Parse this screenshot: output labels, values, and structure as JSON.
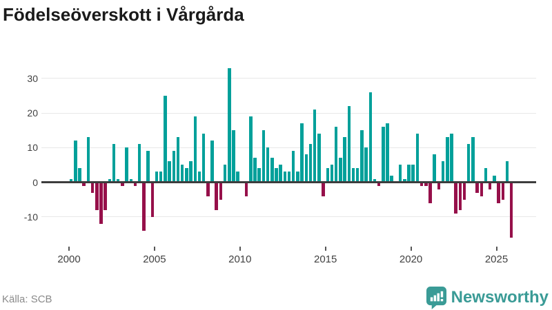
{
  "title": "Födelseöverskott i Vårgårda",
  "source": "Källa: SCB",
  "logo": {
    "text": "Newsworthy",
    "icon": "newsworthy-speech-bubble-chart-icon"
  },
  "colors": {
    "positive_bar": "#00a09a",
    "negative_bar": "#96104a",
    "gridline": "#e8e8e8",
    "zero_line": "#3d3d3d",
    "axis_text": "#404040",
    "muted_text": "#8a8a8a",
    "logo_teal": "#3a9b96",
    "title_text": "#1a1a1a"
  },
  "chart_data": {
    "type": "bar",
    "title": "Födelseöverskott i Vårgårda",
    "x_unit": "quarter",
    "x_tick_labels": [
      "2000",
      "2005",
      "2010",
      "2015",
      "2020",
      "2025"
    ],
    "y_ticks": [
      30,
      20,
      10,
      0,
      -10
    ],
    "ylim": [
      -17,
      34
    ],
    "grid": true,
    "series_name": "Födelseöverskott",
    "quarterly_values": [
      {
        "year": 2000,
        "values": [
          1,
          12,
          4,
          -1
        ]
      },
      {
        "year": 2001,
        "values": [
          13,
          -3,
          -8,
          -12
        ]
      },
      {
        "year": 2002,
        "values": [
          -8,
          1,
          11,
          1
        ]
      },
      {
        "year": 2003,
        "values": [
          -1,
          10,
          1,
          -1
        ]
      },
      {
        "year": 2004,
        "values": [
          11,
          -14,
          9,
          -10
        ]
      },
      {
        "year": 2005,
        "values": [
          3,
          3,
          25,
          6
        ]
      },
      {
        "year": 2006,
        "values": [
          9,
          13,
          5,
          4
        ]
      },
      {
        "year": 2007,
        "values": [
          6,
          19,
          3,
          14
        ]
      },
      {
        "year": 2008,
        "values": [
          -4,
          12,
          -8,
          -5
        ]
      },
      {
        "year": 2009,
        "values": [
          5,
          33,
          15,
          3
        ]
      },
      {
        "year": 2010,
        "values": [
          0,
          -4,
          19,
          7
        ]
      },
      {
        "year": 2011,
        "values": [
          4,
          15,
          10,
          7
        ]
      },
      {
        "year": 2012,
        "values": [
          4,
          5,
          3,
          3
        ]
      },
      {
        "year": 2013,
        "values": [
          9,
          3,
          17,
          8
        ]
      },
      {
        "year": 2014,
        "values": [
          11,
          21,
          14,
          -4
        ]
      },
      {
        "year": 2015,
        "values": [
          4,
          5,
          16,
          7
        ]
      },
      {
        "year": 2016,
        "values": [
          13,
          22,
          4,
          4
        ]
      },
      {
        "year": 2017,
        "values": [
          15,
          10,
          26,
          1
        ]
      },
      {
        "year": 2018,
        "values": [
          -1,
          16,
          17,
          2
        ]
      },
      {
        "year": 2019,
        "values": [
          0,
          5,
          1,
          5
        ]
      },
      {
        "year": 2020,
        "values": [
          5,
          14,
          -1,
          -1
        ]
      },
      {
        "year": 2021,
        "values": [
          -6,
          8,
          -2,
          6
        ]
      },
      {
        "year": 2022,
        "values": [
          13,
          14,
          -9,
          -8
        ]
      },
      {
        "year": 2023,
        "values": [
          -5,
          11,
          13,
          -3
        ]
      },
      {
        "year": 2024,
        "values": [
          -4,
          4,
          -2,
          2
        ]
      },
      {
        "year": 2025,
        "values": [
          -6,
          -5,
          6,
          -16
        ]
      }
    ]
  }
}
